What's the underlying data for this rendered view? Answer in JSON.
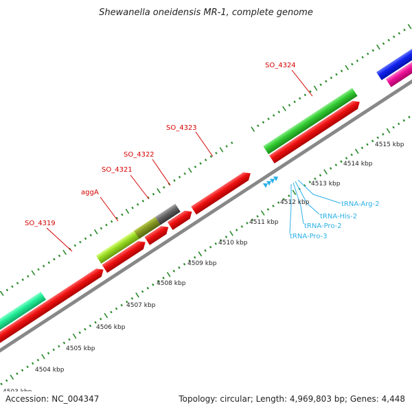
{
  "header": {
    "title": "Shewanella oneidensis MR-1, complete genome"
  },
  "footer": {
    "accession": "Accession: NC_004347",
    "summary": "Topology: circular; Length: 4,969,803 bp; Genes: 4,448"
  },
  "ticks": [
    "4503 kbp",
    "4504 kbp",
    "4505 kbp",
    "4506 kbp",
    "4507 kbp",
    "4508 kbp",
    "4509 kbp",
    "4510 kbp",
    "4511 kbp",
    "4512 kbp",
    "4513 kbp",
    "4514 kbp",
    "4515 kbp"
  ],
  "gene_labels": [
    "SO_4319",
    "aggA",
    "SO_4321",
    "SO_4322",
    "SO_4323",
    "SO_4324"
  ],
  "trna_labels": [
    "tRNA-Arg-2",
    "tRNA-His-2",
    "tRNA-Pro-2",
    "tRNA-Pro-3"
  ],
  "colors": {
    "backbone": "#888888",
    "cds": "#ee1111",
    "gene_green": "#33cc33",
    "gene_teal": "#22ee99",
    "gene_lime": "#99dd22",
    "gene_olive": "#889922",
    "gene_gray": "#666666",
    "gene_blue": "#1122ee",
    "gene_pink": "#ee1199",
    "trna": "#2bb0e8",
    "tick": "#2a8a2a"
  }
}
